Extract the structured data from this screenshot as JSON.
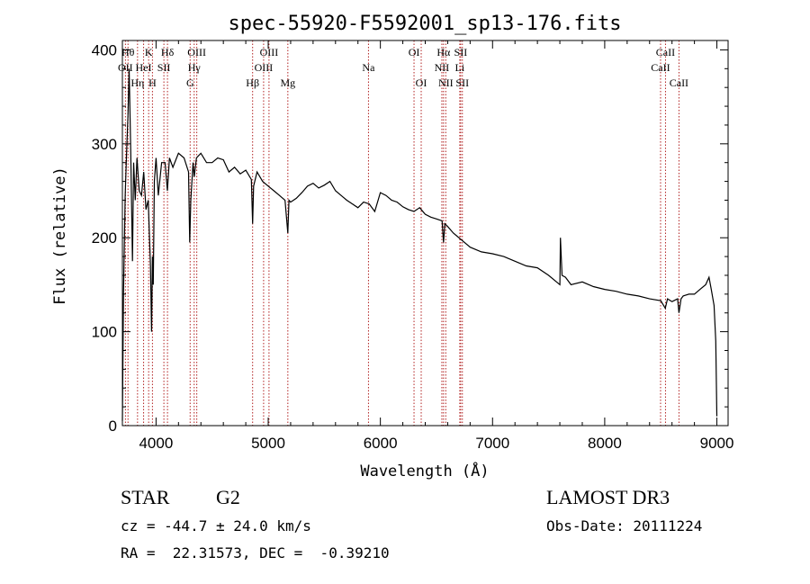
{
  "chart_data": {
    "type": "line",
    "title": "spec-55920-F5592001_sp13-176.fits",
    "xlabel": "Wavelength (Å)",
    "ylabel": "Flux (relative)",
    "xlim": [
      3700,
      9100
    ],
    "ylim": [
      0,
      410
    ],
    "x_ticks": [
      4000,
      5000,
      6000,
      7000,
      8000,
      9000
    ],
    "y_ticks": [
      0,
      100,
      200,
      300,
      400
    ],
    "grid": false,
    "series": [
      {
        "name": "flux",
        "x": [
          3700,
          3710,
          3725,
          3740,
          3750,
          3760,
          3775,
          3790,
          3800,
          3815,
          3830,
          3850,
          3870,
          3890,
          3910,
          3930,
          3950,
          3960,
          3968,
          3975,
          3985,
          4000,
          4020,
          4050,
          4080,
          4101,
          4120,
          4150,
          4200,
          4250,
          4290,
          4300,
          4310,
          4330,
          4340,
          4360,
          4400,
          4450,
          4500,
          4550,
          4600,
          4650,
          4700,
          4750,
          4800,
          4850,
          4861,
          4870,
          4900,
          4950,
          5000,
          5050,
          5100,
          5150,
          5175,
          5185,
          5200,
          5250,
          5300,
          5350,
          5400,
          5450,
          5500,
          5550,
          5600,
          5650,
          5700,
          5750,
          5800,
          5850,
          5900,
          5950,
          6000,
          6050,
          6100,
          6150,
          6200,
          6250,
          6300,
          6350,
          6400,
          6450,
          6500,
          6550,
          6563,
          6575,
          6600,
          6650,
          6700,
          6800,
          6900,
          7000,
          7100,
          7200,
          7300,
          7400,
          7500,
          7600,
          7605,
          7620,
          7650,
          7700,
          7800,
          7900,
          8000,
          8100,
          8200,
          8300,
          8400,
          8500,
          8540,
          8560,
          8600,
          8650,
          8662,
          8680,
          8700,
          8750,
          8800,
          8850,
          8900,
          8930,
          8950,
          8975,
          8990,
          9000
        ],
        "y": [
          5,
          140,
          245,
          300,
          330,
          380,
          290,
          175,
          280,
          240,
          285,
          250,
          245,
          270,
          230,
          240,
          170,
          100,
          180,
          150,
          260,
          285,
          245,
          280,
          280,
          250,
          285,
          275,
          290,
          285,
          270,
          195,
          240,
          280,
          265,
          285,
          290,
          280,
          280,
          285,
          283,
          270,
          275,
          268,
          272,
          262,
          215,
          255,
          270,
          260,
          255,
          250,
          245,
          240,
          205,
          240,
          238,
          242,
          248,
          255,
          258,
          253,
          256,
          260,
          250,
          245,
          240,
          236,
          232,
          238,
          236,
          228,
          248,
          245,
          240,
          238,
          233,
          230,
          228,
          232,
          225,
          222,
          220,
          218,
          195,
          215,
          212,
          205,
          200,
          190,
          185,
          183,
          180,
          175,
          170,
          168,
          160,
          150,
          200,
          160,
          158,
          150,
          153,
          148,
          145,
          143,
          140,
          138,
          135,
          133,
          125,
          135,
          132,
          135,
          120,
          135,
          138,
          140,
          140,
          145,
          150,
          158,
          145,
          128,
          90,
          10
        ]
      }
    ],
    "lines": [
      {
        "label": "OII",
        "wavelength": 3727,
        "row": 2
      },
      {
        "label": "Hθ",
        "wavelength": 3750,
        "row": 1
      },
      {
        "label": "Hη",
        "wavelength": 3835,
        "row": 3
      },
      {
        "label": "HeI",
        "wavelength": 3889,
        "row": 2
      },
      {
        "label": "K",
        "wavelength": 3934,
        "row": 1
      },
      {
        "label": "H",
        "wavelength": 3968,
        "row": 3
      },
      {
        "label": "SII",
        "wavelength": 4070,
        "row": 2
      },
      {
        "label": "Hδ",
        "wavelength": 4102,
        "row": 1
      },
      {
        "label": "G",
        "wavelength": 4304,
        "row": 3
      },
      {
        "label": "Hγ",
        "wavelength": 4340,
        "row": 2
      },
      {
        "label": "OIII",
        "wavelength": 4363,
        "row": 1
      },
      {
        "label": "Hβ",
        "wavelength": 4861,
        "row": 3
      },
      {
        "label": "OIII",
        "wavelength": 4959,
        "row": 2
      },
      {
        "label": "OIII",
        "wavelength": 5007,
        "row": 1
      },
      {
        "label": "Mg",
        "wavelength": 5175,
        "row": 3
      },
      {
        "label": "Na",
        "wavelength": 5894,
        "row": 2
      },
      {
        "label": "OI",
        "wavelength": 6300,
        "row": 1
      },
      {
        "label": "OI",
        "wavelength": 6364,
        "row": 3
      },
      {
        "label": "NII",
        "wavelength": 6548,
        "row": 2
      },
      {
        "label": "Hα",
        "wavelength": 6563,
        "row": 1
      },
      {
        "label": "NII",
        "wavelength": 6583,
        "row": 3
      },
      {
        "label": "Li",
        "wavelength": 6708,
        "row": 2
      },
      {
        "label": "SII",
        "wavelength": 6716,
        "row": 1
      },
      {
        "label": "SII",
        "wavelength": 6731,
        "row": 3
      },
      {
        "label": "CaII",
        "wavelength": 8498,
        "row": 2
      },
      {
        "label": "CaII",
        "wavelength": 8542,
        "row": 1
      },
      {
        "label": "CaII",
        "wavelength": 8662,
        "row": 3
      }
    ]
  },
  "info": {
    "object_class": "STAR",
    "subclass": "G2",
    "survey": "LAMOST DR3",
    "redshift": "cz = -44.7 ± 24.0 km/s",
    "obs_date": "Obs-Date: 20111224",
    "coords": "RA =  22.31573, DEC =  -0.39210"
  },
  "colors": {
    "spectrum": "#000000",
    "line_marker": "#b22222",
    "axis": "#000000"
  }
}
